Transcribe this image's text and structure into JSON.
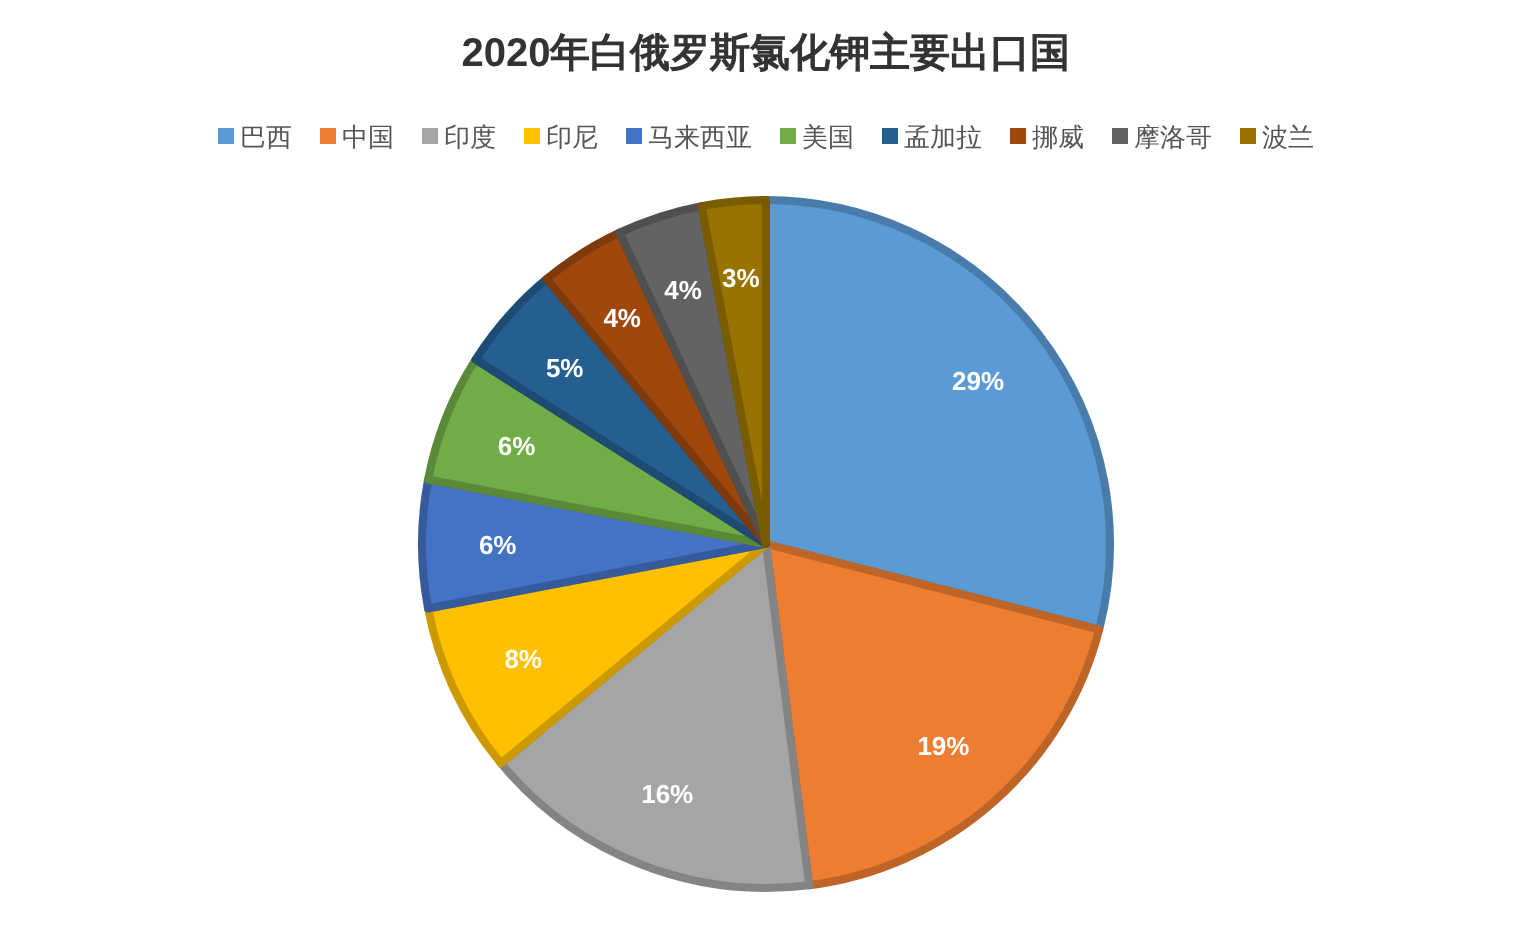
{
  "chart_data": {
    "type": "pie",
    "title": "2020年白俄罗斯氯化钾主要出口国",
    "categories": [
      "巴西",
      "中国",
      "印度",
      "印尼",
      "马来西亚",
      "美国",
      "孟加拉",
      "挪威",
      "摩洛哥",
      "波兰"
    ],
    "values": [
      29,
      19,
      16,
      8,
      6,
      6,
      5,
      4,
      4,
      3
    ],
    "colors": [
      "#5b9bd5",
      "#ed7d31",
      "#a5a5a5",
      "#ffc000",
      "#4472c4",
      "#70ad47",
      "#255e91",
      "#9e480e",
      "#636363",
      "#997300"
    ],
    "value_labels": [
      "29%",
      "19%",
      "16%",
      "8%",
      "6%",
      "6%",
      "5%",
      "4%",
      "4%",
      "3%"
    ],
    "legend": "top"
  }
}
